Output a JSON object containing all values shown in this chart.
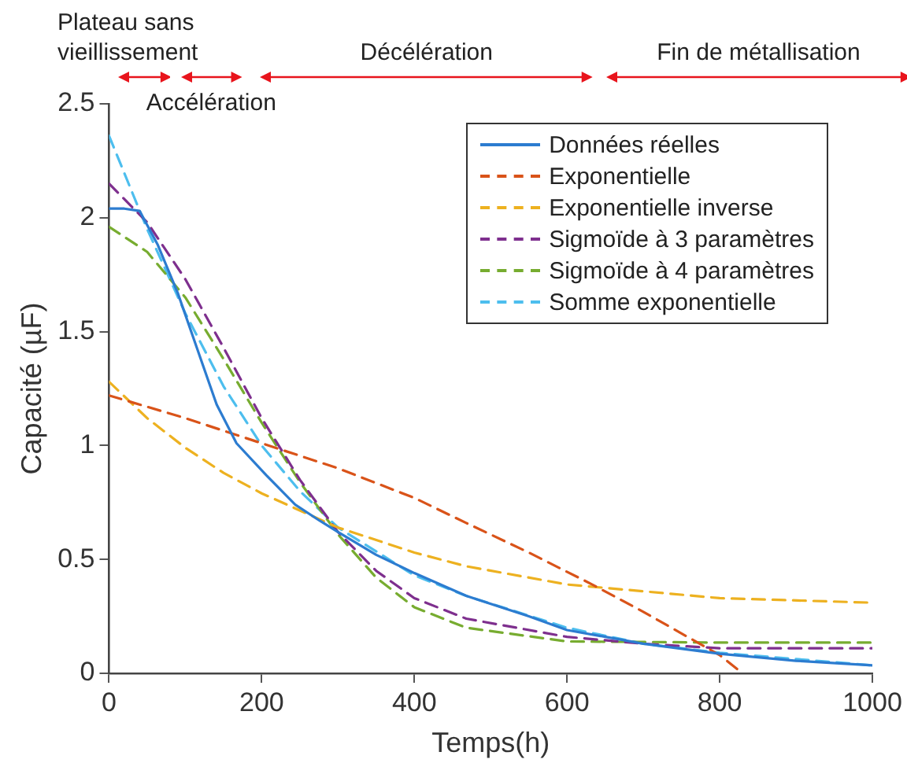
{
  "chart_data": {
    "type": "line",
    "xlabel": "Temps(h)",
    "ylabel": "Capacité (µF)",
    "xlim": [
      0,
      1000
    ],
    "xticks": [
      0,
      200,
      400,
      600,
      800,
      1000
    ],
    "ylim": [
      0,
      2.5
    ],
    "yticks": [
      0,
      0.5,
      1,
      1.5,
      2,
      2.5
    ],
    "grid": false,
    "legend": "top right",
    "marker": "none",
    "annotations": [
      "Plateau sans vieillissement",
      "Accélération",
      "Décélération",
      "Fin de métallisation"
    ],
    "series": [
      {
        "name": "Données réelles",
        "color": "#2c7cd0",
        "line_style": "solid",
        "x": [
          0,
          20,
          40,
          64,
          90,
          116,
          141,
          167,
          206,
          244,
          276,
          300,
          350,
          400,
          468,
          550,
          600,
          700,
          800,
          900,
          1000
        ],
        "values": [
          2.04,
          2.04,
          2.03,
          1.88,
          1.67,
          1.42,
          1.18,
          1.01,
          0.87,
          0.74,
          0.67,
          0.62,
          0.52,
          0.44,
          0.34,
          0.25,
          0.19,
          0.13,
          0.086,
          0.055,
          0.035
        ]
      },
      {
        "name": "Exponentielle",
        "color": "#d95319",
        "line_style": "dashed",
        "x": [
          0,
          100,
          200,
          300,
          400,
          468,
          550,
          633,
          700,
          800,
          830
        ],
        "values": [
          1.22,
          1.12,
          1.01,
          0.9,
          0.77,
          0.66,
          0.53,
          0.39,
          0.27,
          0.08,
          0
        ]
      },
      {
        "name": "Exponentielle inverse",
        "color": "#edb120",
        "line_style": "dashed",
        "x": [
          0,
          50,
          100,
          150,
          200,
          300,
          400,
          468,
          600,
          800,
          1000
        ],
        "values": [
          1.28,
          1.12,
          0.99,
          0.88,
          0.79,
          0.64,
          0.53,
          0.47,
          0.39,
          0.33,
          0.31
        ]
      },
      {
        "name": "Sigmoïde à 3 paramètres",
        "color": "#7e2f8e",
        "line_style": "dashed",
        "x": [
          0,
          50,
          100,
          150,
          200,
          250,
          300,
          350,
          400,
          468,
          600,
          700,
          800,
          1000
        ],
        "values": [
          2.15,
          1.98,
          1.73,
          1.43,
          1.12,
          0.85,
          0.62,
          0.45,
          0.33,
          0.24,
          0.16,
          0.13,
          0.11,
          0.11
        ]
      },
      {
        "name": "Sigmoïde à 4 paramètres",
        "color": "#77ac30",
        "line_style": "dashed",
        "x": [
          0,
          50,
          100,
          150,
          200,
          250,
          300,
          350,
          400,
          468,
          600,
          800,
          1000
        ],
        "values": [
          1.96,
          1.85,
          1.65,
          1.38,
          1.1,
          0.84,
          0.61,
          0.42,
          0.29,
          0.2,
          0.14,
          0.135,
          0.135
        ]
      },
      {
        "name": "Somme exponentielle",
        "color": "#4dbeee",
        "line_style": "dashed",
        "x": [
          0,
          50,
          100,
          150,
          200,
          250,
          300,
          400,
          468,
          600,
          700,
          800,
          1000
        ],
        "values": [
          2.36,
          1.95,
          1.58,
          1.26,
          1.0,
          0.8,
          0.64,
          0.43,
          0.34,
          0.2,
          0.13,
          0.09,
          0.035
        ]
      }
    ]
  }
}
